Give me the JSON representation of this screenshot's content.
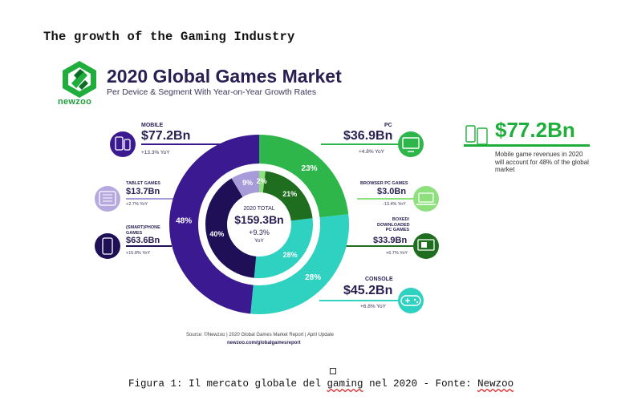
{
  "page": {
    "heading": "The growth of the Gaming Industry"
  },
  "brand": {
    "name": "newzoo"
  },
  "caption": {
    "prefix": "Figura 1: Il mercato globale del ",
    "spell1": "gaming",
    "middle": " nel 2020 - Fonte: ",
    "spell2": "Newzoo"
  },
  "highlight": {
    "value": "$77.2Bn",
    "text": "Mobile game revenues in 2020 will account for 48% of the global market"
  },
  "source": {
    "text": "Source: ©Newzoo | 2020 Global Games Market Report | April Update",
    "url": "newzoo.com/globalgamesreport"
  },
  "callouts": {
    "mobile": {
      "label": "MOBILE",
      "value": "$77.2Bn",
      "growth": "+13.3% YoY"
    },
    "tablet": {
      "label": "TABLET GAMES",
      "value": "$13.7Bn",
      "growth": "+2.7% YoY"
    },
    "smartphone": {
      "label": "(SMART)PHONE\nGAMES",
      "value": "$63.6Bn",
      "growth": "+15.8% YoY"
    },
    "pc": {
      "label": "PC",
      "value": "$36.9Bn",
      "growth": "+4.8% YoY"
    },
    "browser": {
      "label": "BROWSER PC GAMES",
      "value": "$3.0Bn",
      "growth": "-13.4% YoY"
    },
    "boxed": {
      "label": "BOXED/\nDOWNLOADED\nPC GAMES",
      "value": "$33.9Bn",
      "growth": "+6.7% YoY"
    },
    "console": {
      "label": "CONSOLE",
      "value": "$45.2Bn",
      "growth": "+6.8% YoY"
    }
  },
  "colors": {
    "mobile": "#3b1a91",
    "pc": "#2fb64a",
    "console": "#2fd1c0",
    "smartphone": "#1e0f57",
    "tablet": "#a89bd9",
    "boxed": "#1f6e1f",
    "browser": "#8ee07c"
  },
  "chart_data": {
    "type": "pie",
    "title": "2020 Global Games Market",
    "subtitle": "Per Device & Segment With Year-on-Year Growth Rates",
    "center": {
      "label": "2020 TOTAL",
      "value": "$159.3Bn",
      "growth": "+9.3%",
      "growth_unit": "YoY"
    },
    "outer_ring": [
      {
        "name": "Mobile",
        "value": 77.2,
        "share": "48%"
      },
      {
        "name": "PC",
        "value": 36.9,
        "share": "23%"
      },
      {
        "name": "Console",
        "value": 45.2,
        "share": "28%"
      }
    ],
    "inner_ring": [
      {
        "name": "Smartphone",
        "value": 63.6,
        "share": "40%"
      },
      {
        "name": "Tablet",
        "value": 13.7,
        "share": "9%"
      },
      {
        "name": "Browser PC",
        "value": 3.0,
        "share": "2%"
      },
      {
        "name": "Boxed/Downloaded PC",
        "value": 33.9,
        "share": "21%"
      },
      {
        "name": "Console",
        "value": 45.2,
        "share": "28%"
      }
    ]
  }
}
